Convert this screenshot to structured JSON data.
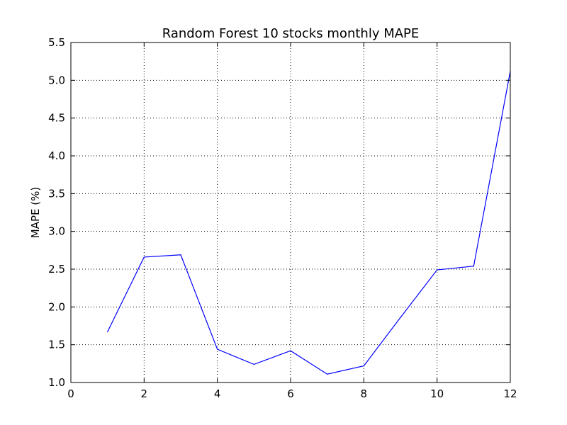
{
  "chart_data": {
    "type": "line",
    "title": "Random Forest 10 stocks monthly MAPE",
    "xlabel": "",
    "ylabel": "MAPE (%)",
    "xlim": [
      0,
      12
    ],
    "ylim": [
      1.0,
      5.5
    ],
    "xticks": [
      0,
      2,
      4,
      6,
      8,
      10,
      12
    ],
    "yticks": [
      1.0,
      1.5,
      2.0,
      2.5,
      3.0,
      3.5,
      4.0,
      4.5,
      5.0,
      5.5
    ],
    "xtick_labels": [
      "0",
      "2",
      "4",
      "6",
      "8",
      "10",
      "12"
    ],
    "ytick_labels": [
      "1.0",
      "1.5",
      "2.0",
      "2.5",
      "3.0",
      "3.5",
      "4.0",
      "4.5",
      "5.0",
      "5.5"
    ],
    "grid": true,
    "line_color": "#0000ff",
    "series": [
      {
        "x": [
          1,
          2,
          3,
          4,
          5,
          6,
          7,
          8,
          9,
          10,
          11,
          12
        ],
        "values": [
          1.67,
          2.66,
          2.69,
          1.44,
          1.24,
          1.42,
          1.11,
          1.22,
          1.86,
          2.49,
          2.54,
          5.12
        ]
      }
    ]
  }
}
